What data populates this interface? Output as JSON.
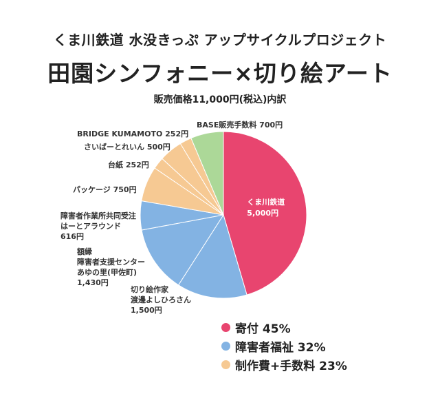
{
  "header": {
    "subtitle": "くま川鉄道 水没きっぷ アップサイクルプロジェクト",
    "title": "田園シンフォニー×切り絵アート",
    "breakdown": "販売価格11,000円(税込)内訳"
  },
  "chart_data": {
    "type": "pie",
    "total": 11000,
    "slices": [
      {
        "label": "くま川鉄道\n5,000円",
        "value": 5000,
        "color": "#e8456f",
        "group": "donation"
      },
      {
        "label": "切り絵作家\n渡邊よしひろさん\n1,500円",
        "value": 1500,
        "color": "#83b3e3",
        "group": "welfare"
      },
      {
        "label": "額縁\n障害者支援センター\nあゆの里(甲佐町)\n1,430円",
        "value": 1430,
        "color": "#83b3e3",
        "group": "welfare"
      },
      {
        "label": "障害者作業所共同受注\nはーとアラウンド\n616円",
        "value": 616,
        "color": "#83b3e3",
        "group": "welfare"
      },
      {
        "label": "パッケージ 750円",
        "value": 750,
        "color": "#f6c993",
        "group": "production"
      },
      {
        "label": "台紙 252円",
        "value": 252,
        "color": "#f6c993",
        "group": "production"
      },
      {
        "label": "さいばーとれいん 500円",
        "value": 500,
        "color": "#f6c993",
        "group": "production"
      },
      {
        "label": "BRIDGE KUMAMOTO 252円",
        "value": 252,
        "color": "#f6c993",
        "group": "production"
      },
      {
        "label": "BASE販売手数料 700円",
        "value": 700,
        "color": "#acd898",
        "group": "fee"
      }
    ],
    "legend": [
      {
        "label": "寄付 45%",
        "color": "#e8456f"
      },
      {
        "label": "障害者福祉 32%",
        "color": "#83b3e3"
      },
      {
        "label": "制作費+手数料 23%",
        "color": "#f6c993"
      }
    ]
  }
}
